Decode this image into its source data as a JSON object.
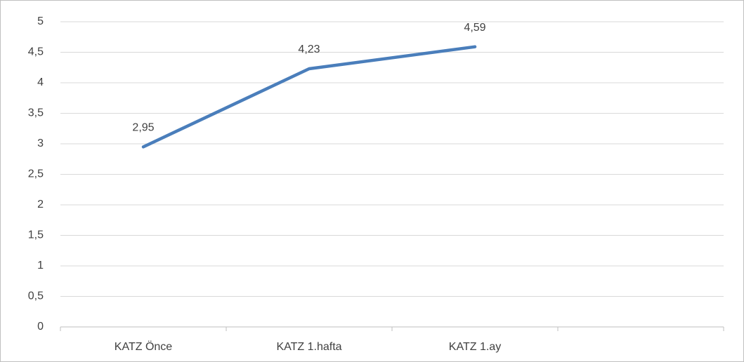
{
  "chart_data": {
    "type": "line",
    "categories": [
      "KATZ Önce",
      "KATZ 1.hafta",
      "KATZ 1.ay",
      null
    ],
    "series": [
      {
        "color": "#4a7ebb",
        "values": [
          2.95,
          4.23,
          4.59,
          null
        ],
        "value_labels": [
          "2,95",
          "4,23",
          "4,59",
          null
        ]
      }
    ],
    "ylim": [
      0,
      5
    ],
    "yticks": [
      0,
      {
        "value": 0.5,
        "label": "0,5"
      },
      1,
      {
        "value": 1.5,
        "label": "1,5"
      },
      2,
      {
        "value": 2.5,
        "label": "2,5"
      },
      3,
      {
        "value": 3.5,
        "label": "3,5"
      },
      4,
      {
        "value": 4.5,
        "label": "4,5"
      },
      5
    ],
    "grid": true
  }
}
